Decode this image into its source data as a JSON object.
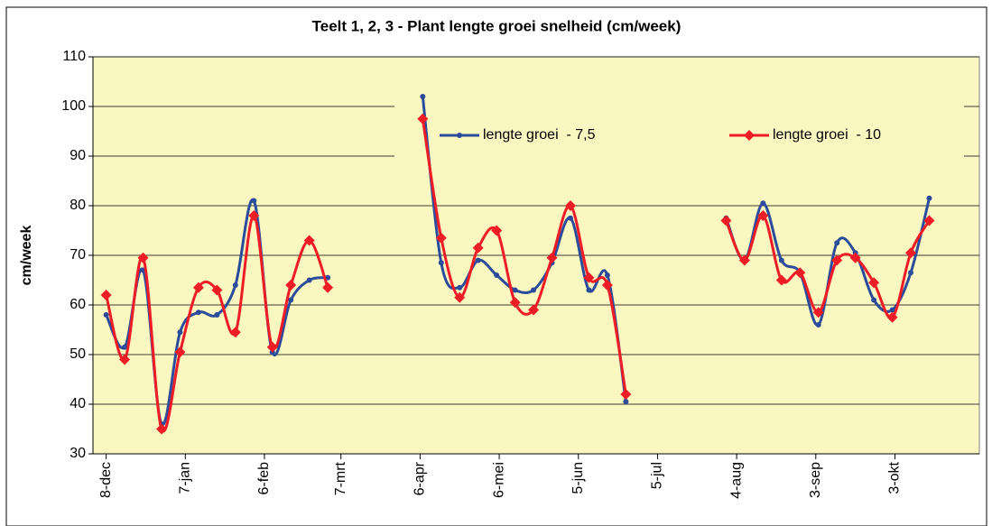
{
  "chart_data": {
    "type": "line",
    "title": "Teelt 1, 2, 3 - Plant lengte groei snelheid (cm/week)",
    "y_label": "cm/week",
    "x": [
      "8-dec",
      "15-dec",
      "22-dec",
      "29-dec",
      "5-jan",
      "12-jan",
      "19-jan",
      "26-jan",
      "2-feb",
      "9-feb",
      "16-feb",
      "23-feb",
      "2-mrt",
      "9-mrt",
      "7-apr",
      "14-apr",
      "21-apr",
      "28-apr",
      "5-mei",
      "12-mei",
      "19-mei",
      "26-mei",
      "2-jun",
      "9-jun",
      "16-jun",
      "23-jun",
      "30-jun",
      "31-jul",
      "7-aug",
      "14-aug",
      "21-aug",
      "28-aug",
      "4-sep",
      "11-sep",
      "18-sep",
      "25-sep",
      "2-okt",
      "9-okt",
      "16-okt"
    ],
    "series": [
      {
        "name": "lengte groei  - 7,5",
        "color": "#2b4b9b",
        "marker": "circle",
        "values": [
          58,
          51.5,
          67,
          36,
          54.5,
          58.5,
          58,
          64,
          81,
          50.5,
          61,
          65,
          65.5,
          null,
          102,
          68.5,
          63.5,
          69,
          66,
          63,
          63,
          68.5,
          77.5,
          63,
          66,
          40.5,
          null,
          77.5,
          69,
          80.5,
          69,
          66.5,
          56,
          72.5,
          70.5,
          61,
          59,
          66.5,
          81.5
        ]
      },
      {
        "name": "lengte groei  - 10",
        "color": "#ee1c25",
        "marker": "diamond",
        "values": [
          62,
          49,
          69.5,
          35,
          50.5,
          63.5,
          63,
          54.5,
          78,
          51.5,
          64,
          73,
          63.5,
          null,
          97.5,
          73.5,
          61.5,
          71.5,
          75,
          60.5,
          59,
          69.5,
          80,
          65.5,
          64,
          42,
          null,
          77,
          69,
          78,
          65,
          66.5,
          58.5,
          69,
          69.5,
          64.5,
          57.5,
          70.5,
          77
        ]
      }
    ],
    "xlim": [
      "3-dec",
      "4-nov"
    ],
    "xticks": [
      "8-dec",
      "7-jan",
      "6-feb",
      "7-mrt",
      "6-apr",
      "6-mei",
      "5-jun",
      "5-jul",
      "4-aug",
      "3-sep",
      "3-okt"
    ],
    "ylim": [
      30,
      110
    ],
    "yticks": [
      30,
      40,
      50,
      60,
      70,
      80,
      90,
      100,
      110
    ],
    "grid": true,
    "smooth": true,
    "legend": "top-right"
  }
}
